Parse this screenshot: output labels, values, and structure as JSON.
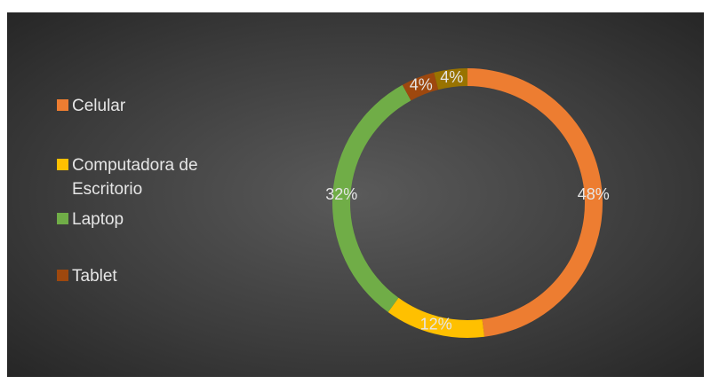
{
  "chart_data": {
    "type": "donut",
    "categories": [
      "Celular",
      "Computadora de Escritorio",
      "Laptop",
      "Tablet",
      null
    ],
    "values": [
      48,
      12,
      32,
      4,
      4
    ],
    "value_labels": [
      "48%",
      "12%",
      "32%",
      "4%",
      "4%"
    ],
    "colors": [
      "#ed7d31",
      "#ffc000",
      "#70ad47",
      "#9e480e",
      "#997300"
    ],
    "legend": "left"
  }
}
